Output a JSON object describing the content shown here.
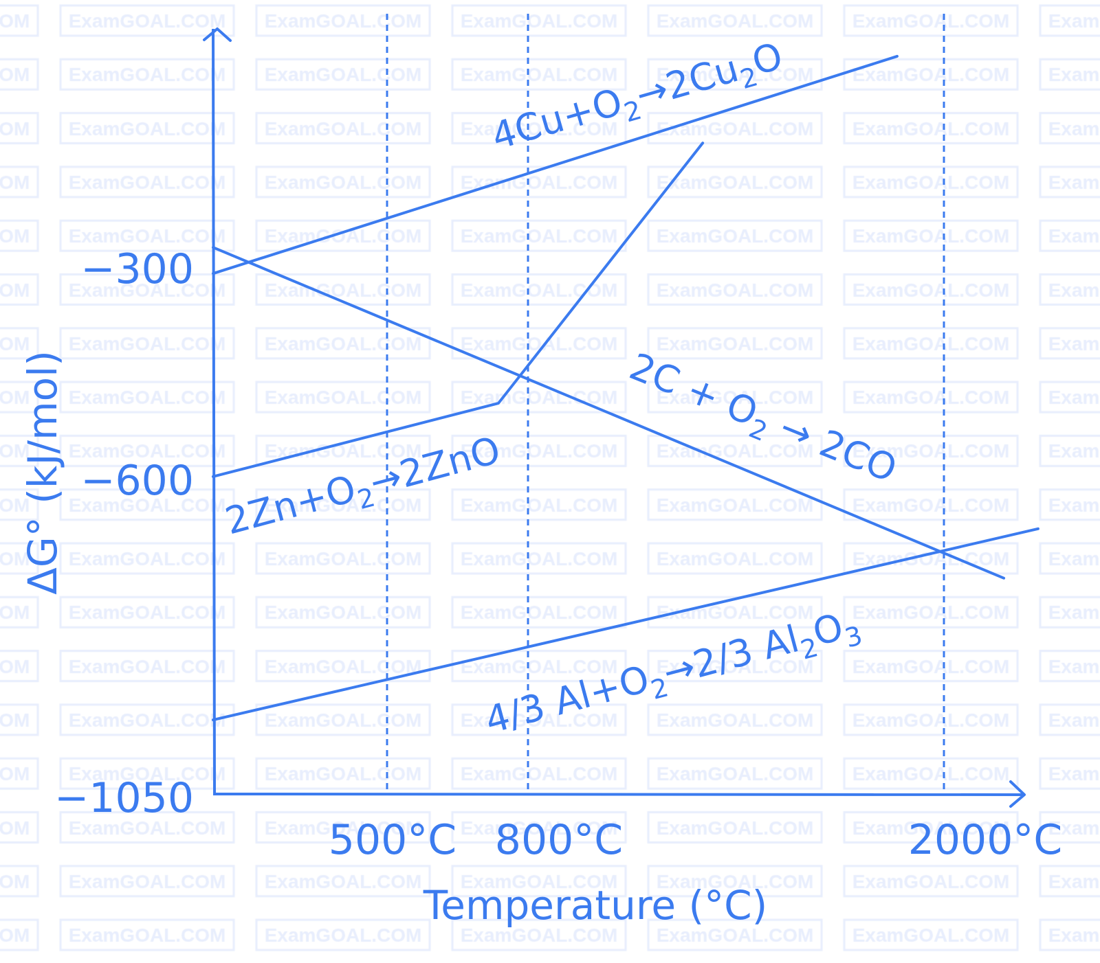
{
  "watermark": "ExamGOAL.COM",
  "colors": {
    "ink": "#3b7bef",
    "watermark": "#e8eefd",
    "background": "#ffffff"
  },
  "chart_data": {
    "type": "line",
    "xlabel": "Temperature (°C)",
    "ylabel": "ΔG° (kJ/mol)",
    "x_ticks": [
      {
        "value": 500,
        "label": "500°C"
      },
      {
        "value": 800,
        "label": "800°C"
      },
      {
        "value": 2000,
        "label": "2000°C"
      }
    ],
    "y_ticks": [
      {
        "value": -300,
        "label": "−300"
      },
      {
        "value": -600,
        "label": "−600"
      },
      {
        "value": -1050,
        "label": "−1050"
      }
    ],
    "xlim": [
      0,
      2300
    ],
    "ylim": [
      -1050,
      20
    ],
    "grid": false,
    "reference_lines_x": [
      500,
      800,
      2000
    ],
    "series": [
      {
        "name": "4Cu+O2→2Cu2O",
        "label": [
          {
            "t": "4Cu+O"
          },
          {
            "t": "2",
            "sub": true
          },
          {
            "t": "→2Cu"
          },
          {
            "t": "2",
            "sub": true
          },
          {
            "t": "O"
          }
        ],
        "points": [
          [
            0,
            -306
          ],
          [
            1865,
            2
          ]
        ]
      },
      {
        "name": "2C + O2 → 2CO",
        "label": [
          {
            "t": "2C + O"
          },
          {
            "t": "2",
            "sub": true
          },
          {
            "t": " → 2CO"
          }
        ],
        "points": [
          [
            0,
            -269
          ],
          [
            2173,
            -738
          ]
        ]
      },
      {
        "name": "2Zn+O2→2ZnO",
        "label": [
          {
            "t": "2Zn+O"
          },
          {
            "t": "2",
            "sub": true
          },
          {
            "t": "→2ZnO"
          }
        ],
        "points": [
          [
            0,
            -594
          ],
          [
            737,
            -490
          ],
          [
            1304,
            -121
          ]
        ]
      },
      {
        "name": "4/3 Al+O2→2/3 Al2O3",
        "label": [
          {
            "t": "4/3 Al+O"
          },
          {
            "t": "2",
            "sub": true
          },
          {
            "t": "→2/3 Al"
          },
          {
            "t": "2",
            "sub": true
          },
          {
            "t": "O"
          },
          {
            "t": "3",
            "sub": true
          }
        ],
        "points": [
          [
            0,
            -939
          ],
          [
            2272,
            -668
          ]
        ]
      }
    ]
  }
}
